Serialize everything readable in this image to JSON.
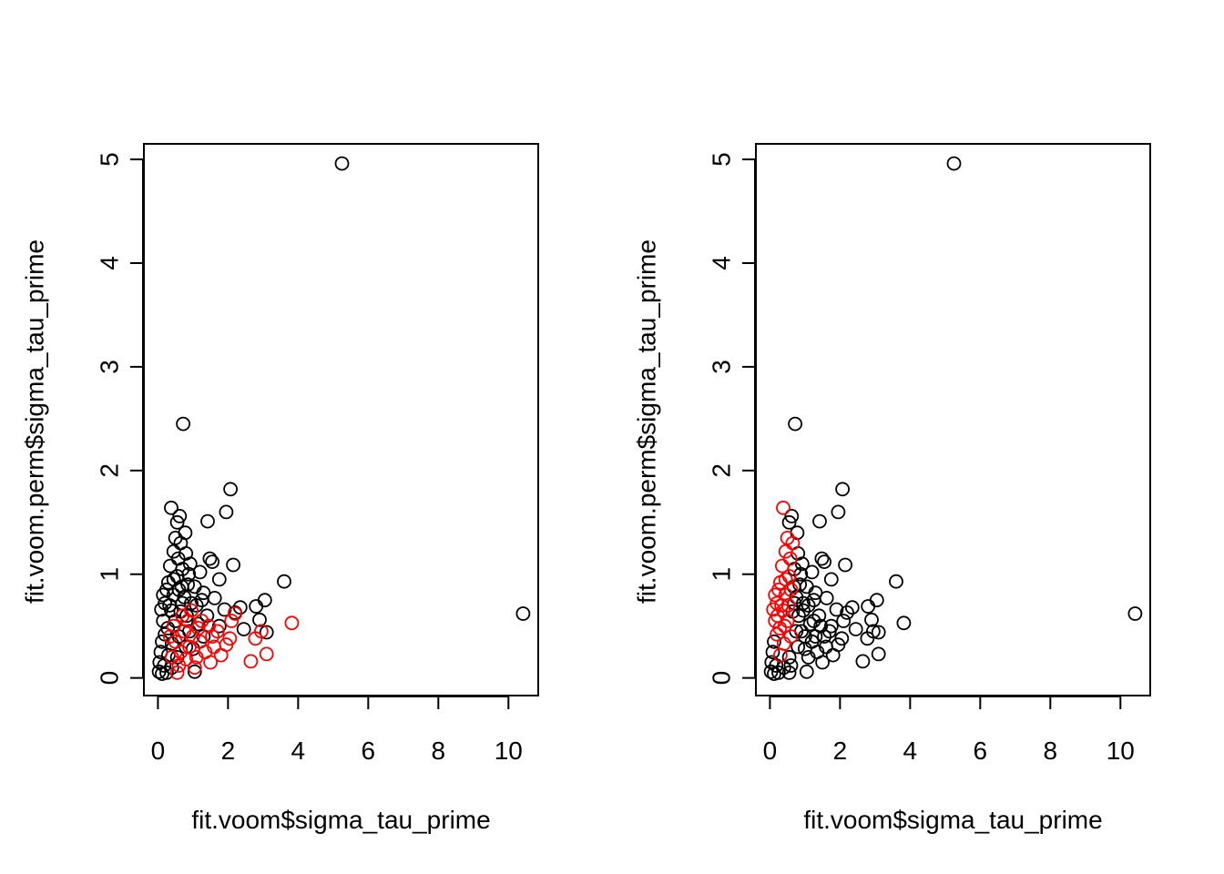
{
  "colors": {
    "background": "#ffffff",
    "axis": "#000000",
    "series_black": "#000000",
    "series_red": "#ff0000"
  },
  "chart_data": [
    {
      "type": "scatter",
      "panel": "left",
      "title": "",
      "xlabel": "fit.voom$sigma_tau_prime",
      "ylabel": "fit.voom.perm$sigma_tau_prime",
      "xlim": [
        -0.4,
        10.85
      ],
      "ylim": [
        -0.17,
        5.15
      ],
      "xticks": [
        "0",
        "2",
        "4",
        "6",
        "8",
        "10"
      ],
      "yticks": [
        "0",
        "1",
        "2",
        "3",
        "4",
        "5"
      ],
      "grid": false,
      "series": [
        {
          "color": "#000000",
          "points": [
            [
              5.25,
              4.96
            ],
            [
              10.42,
              0.62
            ],
            [
              0.72,
              2.45
            ],
            [
              2.07,
              1.82
            ],
            [
              0.38,
              1.64
            ],
            [
              1.95,
              1.6
            ],
            [
              0.62,
              1.56
            ],
            [
              0.55,
              1.5
            ],
            [
              1.42,
              1.51
            ],
            [
              0.78,
              1.4
            ],
            [
              0.5,
              1.35
            ],
            [
              0.65,
              1.3
            ],
            [
              0.45,
              1.22
            ],
            [
              0.8,
              1.2
            ],
            [
              1.48,
              1.15
            ],
            [
              1.55,
              1.12
            ],
            [
              2.15,
              1.09
            ],
            [
              0.92,
              1.1
            ],
            [
              0.35,
              1.08
            ],
            [
              0.7,
              1.05
            ],
            [
              1.2,
              1.02
            ],
            [
              0.55,
              0.98
            ],
            [
              1.75,
              0.95
            ],
            [
              3.6,
              0.93
            ],
            [
              0.3,
              0.92
            ],
            [
              0.85,
              0.9
            ],
            [
              1.05,
              0.88
            ],
            [
              0.25,
              0.85
            ],
            [
              0.6,
              0.85
            ],
            [
              1.3,
              0.82
            ],
            [
              0.15,
              0.8
            ],
            [
              0.45,
              0.8
            ],
            [
              0.75,
              0.78
            ],
            [
              1.62,
              0.77
            ],
            [
              3.05,
              0.75
            ],
            [
              0.2,
              0.72
            ],
            [
              0.95,
              0.72
            ],
            [
              1.1,
              0.7
            ],
            [
              2.35,
              0.68
            ],
            [
              2.8,
              0.69
            ],
            [
              1.9,
              0.66
            ],
            [
              0.1,
              0.66
            ],
            [
              0.38,
              0.65
            ],
            [
              0.65,
              0.64
            ],
            [
              2.2,
              0.63
            ],
            [
              0.82,
              0.6
            ],
            [
              1.4,
              0.6
            ],
            [
              2.9,
              0.56
            ],
            [
              0.15,
              0.55
            ],
            [
              0.5,
              0.55
            ],
            [
              1.15,
              0.52
            ],
            [
              1.75,
              0.5
            ],
            [
              0.28,
              0.48
            ],
            [
              2.45,
              0.47
            ],
            [
              0.9,
              0.45
            ],
            [
              3.1,
              0.44
            ],
            [
              0.2,
              0.42
            ],
            [
              0.6,
              0.4
            ],
            [
              1.3,
              0.4
            ],
            [
              0.12,
              0.35
            ],
            [
              0.4,
              0.33
            ],
            [
              0.8,
              0.3
            ],
            [
              1.0,
              0.28
            ],
            [
              0.08,
              0.25
            ],
            [
              0.3,
              0.22
            ],
            [
              0.55,
              0.2
            ],
            [
              0.05,
              0.15
            ],
            [
              0.18,
              0.12
            ],
            [
              0.4,
              0.1
            ],
            [
              0.03,
              0.06
            ],
            [
              0.12,
              0.04
            ],
            [
              0.25,
              0.05
            ],
            [
              1.05,
              0.06
            ],
            [
              0.7,
              0.72
            ],
            [
              0.45,
              0.95
            ],
            [
              0.58,
              1.15
            ],
            [
              0.88,
              1.0
            ],
            [
              1.25,
              0.75
            ],
            [
              0.33,
              0.7
            ],
            [
              0.68,
              0.88
            ]
          ]
        },
        {
          "color": "#ff0000",
          "points": [
            [
              3.82,
              0.53
            ],
            [
              2.78,
              0.38
            ],
            [
              2.65,
              0.16
            ],
            [
              3.1,
              0.23
            ],
            [
              2.95,
              0.45
            ],
            [
              2.05,
              0.38
            ],
            [
              1.95,
              0.32
            ],
            [
              1.8,
              0.22
            ],
            [
              1.6,
              0.3
            ],
            [
              1.5,
              0.15
            ],
            [
              1.35,
              0.25
            ],
            [
              1.2,
              0.35
            ],
            [
              1.1,
              0.2
            ],
            [
              1.0,
              0.4
            ],
            [
              0.9,
              0.3
            ],
            [
              0.85,
              0.55
            ],
            [
              0.75,
              0.45
            ],
            [
              0.7,
              0.6
            ],
            [
              0.65,
              0.25
            ],
            [
              0.6,
              0.12
            ],
            [
              0.55,
              0.05
            ],
            [
              0.5,
              0.35
            ],
            [
              0.45,
              0.5
            ],
            [
              0.4,
              0.2
            ],
            [
              1.7,
              0.45
            ],
            [
              1.45,
              0.5
            ],
            [
              1.25,
              0.55
            ],
            [
              2.2,
              0.62
            ],
            [
              2.1,
              0.55
            ],
            [
              0.95,
              0.65
            ],
            [
              1.55,
              0.4
            ],
            [
              1.15,
              0.48
            ],
            [
              0.8,
              0.18
            ],
            [
              1.05,
              0.1
            ],
            [
              0.35,
              0.4
            ]
          ]
        }
      ]
    },
    {
      "type": "scatter",
      "panel": "right",
      "title": "",
      "xlabel": "fit.voom$sigma_tau_prime",
      "ylabel": "fit.voom.perm$sigma_tau_prime",
      "xlim": [
        -0.4,
        10.85
      ],
      "ylim": [
        -0.17,
        5.15
      ],
      "xticks": [
        "0",
        "2",
        "4",
        "6",
        "8",
        "10"
      ],
      "yticks": [
        "0",
        "1",
        "2",
        "3",
        "4",
        "5"
      ],
      "grid": false,
      "series": [
        {
          "color": "#000000",
          "points": [
            [
              5.25,
              4.96
            ],
            [
              10.42,
              0.62
            ],
            [
              0.72,
              2.45
            ],
            [
              2.07,
              1.82
            ],
            [
              1.95,
              1.6
            ],
            [
              1.42,
              1.51
            ],
            [
              0.78,
              1.4
            ],
            [
              0.8,
              1.2
            ],
            [
              1.48,
              1.15
            ],
            [
              1.55,
              1.12
            ],
            [
              2.15,
              1.09
            ],
            [
              0.92,
              1.1
            ],
            [
              0.7,
              1.05
            ],
            [
              1.2,
              1.02
            ],
            [
              1.75,
              0.95
            ],
            [
              3.6,
              0.93
            ],
            [
              0.85,
              0.9
            ],
            [
              1.05,
              0.88
            ],
            [
              1.3,
              0.82
            ],
            [
              0.75,
              0.78
            ],
            [
              1.62,
              0.77
            ],
            [
              3.05,
              0.75
            ],
            [
              0.95,
              0.72
            ],
            [
              1.1,
              0.7
            ],
            [
              2.35,
              0.68
            ],
            [
              2.8,
              0.69
            ],
            [
              1.9,
              0.66
            ],
            [
              0.65,
              0.64
            ],
            [
              2.2,
              0.63
            ],
            [
              0.82,
              0.6
            ],
            [
              1.4,
              0.6
            ],
            [
              2.9,
              0.56
            ],
            [
              3.82,
              0.53
            ],
            [
              1.15,
              0.52
            ],
            [
              1.75,
              0.5
            ],
            [
              2.45,
              0.47
            ],
            [
              0.9,
              0.45
            ],
            [
              3.1,
              0.44
            ],
            [
              2.95,
              0.45
            ],
            [
              2.78,
              0.38
            ],
            [
              2.05,
              0.38
            ],
            [
              1.95,
              0.32
            ],
            [
              1.3,
              0.4
            ],
            [
              0.8,
              0.3
            ],
            [
              1.0,
              0.28
            ],
            [
              1.8,
              0.22
            ],
            [
              1.6,
              0.3
            ],
            [
              1.35,
              0.25
            ],
            [
              2.65,
              0.16
            ],
            [
              3.1,
              0.23
            ],
            [
              1.5,
              0.15
            ],
            [
              1.1,
              0.2
            ],
            [
              0.55,
              0.2
            ],
            [
              0.4,
              0.1
            ],
            [
              0.03,
              0.06
            ],
            [
              0.12,
              0.04
            ],
            [
              0.25,
              0.05
            ],
            [
              1.05,
              0.06
            ],
            [
              0.6,
              0.12
            ],
            [
              0.55,
              0.05
            ],
            [
              0.7,
              0.72
            ],
            [
              0.88,
              1.0
            ],
            [
              1.25,
              0.75
            ],
            [
              0.68,
              0.88
            ],
            [
              0.62,
              1.56
            ],
            [
              0.55,
              1.5
            ],
            [
              1.2,
              0.35
            ],
            [
              1.0,
              0.4
            ],
            [
              0.75,
              0.45
            ],
            [
              1.7,
              0.45
            ],
            [
              1.45,
              0.5
            ],
            [
              1.25,
              0.55
            ],
            [
              2.1,
              0.55
            ],
            [
              0.95,
              0.65
            ],
            [
              1.55,
              0.4
            ],
            [
              0.05,
              0.15
            ],
            [
              0.18,
              0.12
            ],
            [
              0.08,
              0.25
            ],
            [
              0.12,
              0.35
            ]
          ]
        },
        {
          "color": "#ff0000",
          "points": [
            [
              0.38,
              1.64
            ],
            [
              0.5,
              1.35
            ],
            [
              0.45,
              1.22
            ],
            [
              0.35,
              1.08
            ],
            [
              0.55,
              0.98
            ],
            [
              0.3,
              0.92
            ],
            [
              0.25,
              0.85
            ],
            [
              0.6,
              0.85
            ],
            [
              0.15,
              0.8
            ],
            [
              0.45,
              0.8
            ],
            [
              0.2,
              0.72
            ],
            [
              0.1,
              0.66
            ],
            [
              0.38,
              0.65
            ],
            [
              0.15,
              0.55
            ],
            [
              0.5,
              0.55
            ],
            [
              0.28,
              0.48
            ],
            [
              0.2,
              0.42
            ],
            [
              0.6,
              0.4
            ],
            [
              0.4,
              0.33
            ],
            [
              0.3,
              0.22
            ],
            [
              0.33,
              0.7
            ],
            [
              0.45,
              0.95
            ],
            [
              0.58,
              1.15
            ],
            [
              0.65,
              1.3
            ],
            [
              0.42,
              0.5
            ],
            [
              0.22,
              0.6
            ],
            [
              0.52,
              0.7
            ]
          ]
        }
      ]
    }
  ]
}
